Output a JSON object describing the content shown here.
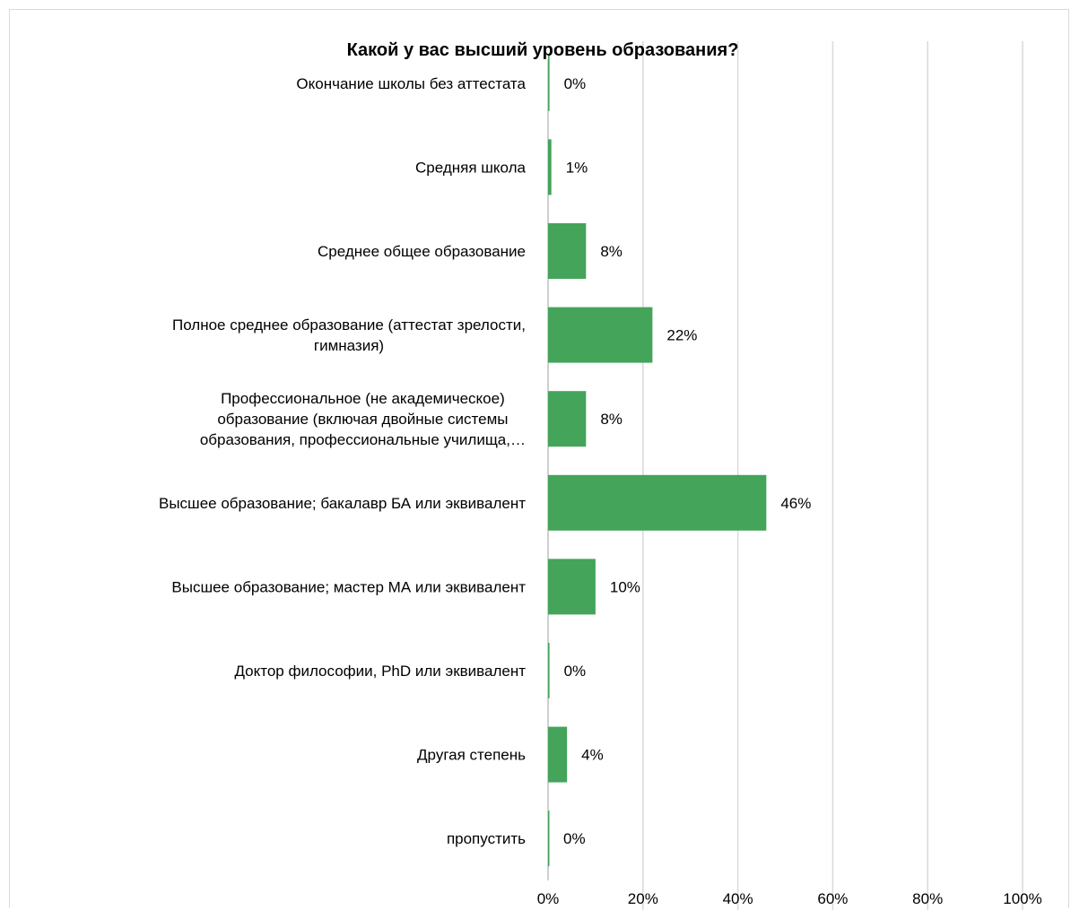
{
  "chart_data": {
    "type": "bar",
    "orientation": "horizontal",
    "title": "Какой у вас высший уровень образования?",
    "categories": [
      [
        "Окончание школы без аттестата"
      ],
      [
        "Средняя школа"
      ],
      [
        "Среднее общее образование"
      ],
      [
        "Полное среднее образование (аттестат зрелости,",
        "гимназия)"
      ],
      [
        "Профессиональное (не академическое)",
        "образование (включая двойные системы",
        "образования, профессиональные училища,…"
      ],
      [
        "Высшее образование; бакалавр БА или эквивалент"
      ],
      [
        "Высшее образование; мастер МА или эквивалент"
      ],
      [
        "Доктор философии, PhD или эквивалент"
      ],
      [
        "Другая степень"
      ],
      [
        "пропустить"
      ]
    ],
    "values": [
      0.3,
      0.7,
      8,
      22,
      8,
      46,
      10,
      0.3,
      4,
      0.2
    ],
    "value_labels": [
      "0%",
      "1%",
      "8%",
      "22%",
      "8%",
      "46%",
      "10%",
      "0%",
      "4%",
      "0%"
    ],
    "xlim": [
      0,
      100
    ],
    "ticks": [
      0,
      20,
      40,
      60,
      80,
      100
    ],
    "tick_labels": [
      "0%",
      "20%",
      "40%",
      "60%",
      "80%",
      "100%"
    ],
    "xlabel": "",
    "ylabel": "",
    "grid": true,
    "legend": "none",
    "colors": {
      "bar": "#43a45a",
      "grid": "#d9d9d9"
    }
  }
}
